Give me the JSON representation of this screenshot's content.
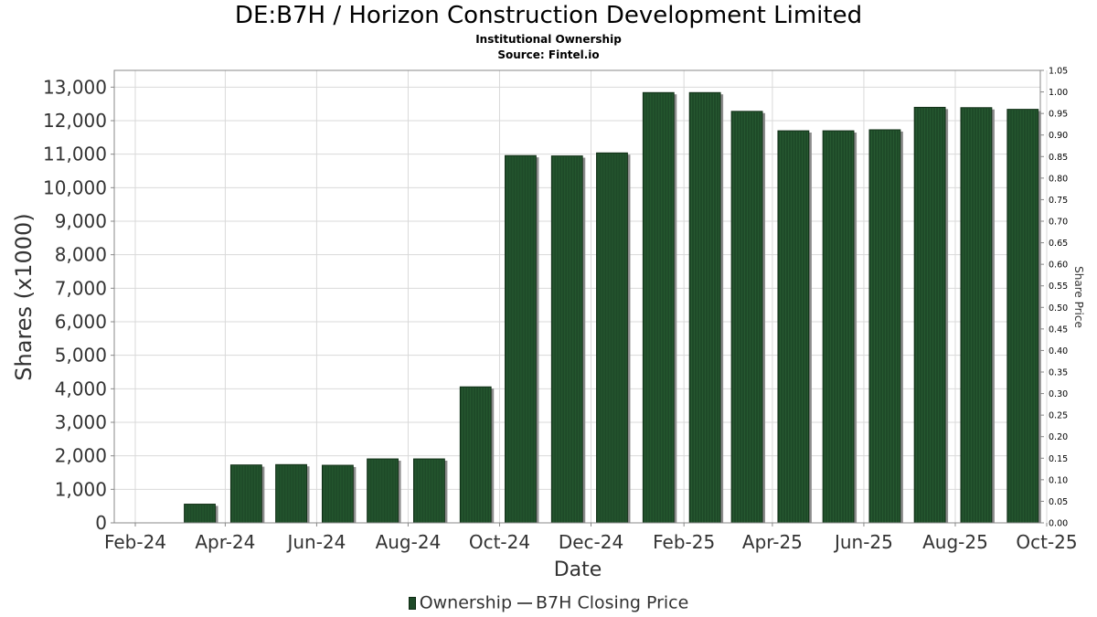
{
  "header": {
    "title": "DE:B7H / Horizon Construction Development Limited",
    "subtitle": "Institutional Ownership",
    "source": "Source: Fintel.io"
  },
  "legend": {
    "ownership_label": "Ownership",
    "price_label": "B7H Closing Price"
  },
  "colors": {
    "bar_fill": "#1e4a28",
    "bar_shadow": "#8c8c8c",
    "grid": "#d9d9d9",
    "frame": "#888888"
  },
  "chart_data": {
    "type": "bar",
    "xlabel": "Date",
    "ylabel": "Shares (x1000)",
    "y2label": "Share Price",
    "ylim": [
      0,
      13500
    ],
    "y2lim": [
      0,
      1.05
    ],
    "grid": true,
    "legend_position": "bottom-center",
    "x_ticks": [
      "Feb-24",
      "Apr-24",
      "Jun-24",
      "Aug-24",
      "Oct-24",
      "Dec-24",
      "Feb-25",
      "Apr-25",
      "Jun-25",
      "Aug-25",
      "Oct-25"
    ],
    "y_ticks": [
      "0",
      "1,000",
      "2,000",
      "3,000",
      "4,000",
      "5,000",
      "6,000",
      "7,000",
      "8,000",
      "9,000",
      "10,000",
      "11,000",
      "12,000",
      "13,000"
    ],
    "y2_ticks": [
      "0.00",
      "0.05",
      "0.10",
      "0.15",
      "0.20",
      "0.25",
      "0.30",
      "0.35",
      "0.40",
      "0.45",
      "0.50",
      "0.55",
      "0.60",
      "0.65",
      "0.70",
      "0.75",
      "0.80",
      "0.85",
      "0.90",
      "0.95",
      "1.00",
      "1.05"
    ],
    "series": [
      {
        "name": "Ownership",
        "x": [
          "2024-03-15",
          "2024-04-15",
          "2024-05-15",
          "2024-06-15",
          "2024-07-15",
          "2024-08-15",
          "2024-09-15",
          "2024-10-15",
          "2024-11-15",
          "2024-12-15",
          "2025-01-15",
          "2025-02-15",
          "2025-03-15",
          "2025-04-15",
          "2025-05-15",
          "2025-06-15",
          "2025-07-15",
          "2025-08-15",
          "2025-09-15"
        ],
        "values": [
          560,
          1730,
          1740,
          1720,
          1910,
          1910,
          4060,
          10960,
          10950,
          11040,
          12840,
          12840,
          12280,
          11700,
          11700,
          11730,
          12400,
          12390,
          12340
        ]
      },
      {
        "name": "B7H Closing Price",
        "values": []
      }
    ]
  }
}
